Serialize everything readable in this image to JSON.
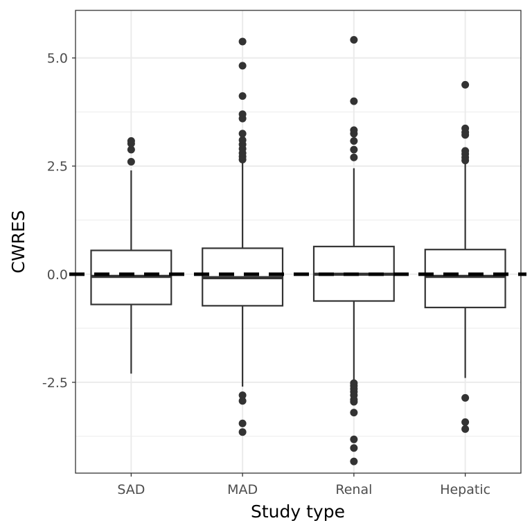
{
  "chart_data": {
    "type": "boxplot",
    "title": "",
    "xlabel": "Study type",
    "ylabel": "CWRES",
    "categories": [
      "SAD",
      "MAD",
      "Renal",
      "Hepatic"
    ],
    "ylim": [
      -4.6,
      6.1
    ],
    "y_ticks": [
      -2.5,
      0.0,
      2.5,
      5.0
    ],
    "y_tick_labels": [
      "-2.5",
      "0.0",
      "2.5",
      "5.0"
    ],
    "y_minor_ticks": [
      -3.75,
      -1.25,
      1.25,
      3.75
    ],
    "reference_line": {
      "y": 0,
      "style": "dashed"
    },
    "grid": true,
    "boxes": [
      {
        "name": "SAD",
        "q1": -0.7,
        "median": -0.05,
        "q3": 0.55,
        "whisker_low": -2.3,
        "whisker_high": 2.4,
        "outliers_high": [
          2.6,
          2.88,
          3.02,
          3.08
        ],
        "outliers_low": []
      },
      {
        "name": "MAD",
        "q1": -0.73,
        "median": -0.08,
        "q3": 0.6,
        "whisker_low": -2.6,
        "whisker_high": 2.6,
        "outliers_high": [
          2.65,
          2.72,
          2.8,
          2.9,
          3.0,
          3.1,
          3.25,
          3.6,
          3.7,
          4.12,
          4.82,
          5.38
        ],
        "outliers_low": [
          -2.8,
          -2.93,
          -3.45,
          -3.65
        ]
      },
      {
        "name": "Renal",
        "q1": -0.62,
        "median": 0.0,
        "q3": 0.64,
        "whisker_low": -2.48,
        "whisker_high": 2.45,
        "outliers_high": [
          2.7,
          2.88,
          3.08,
          3.25,
          3.33,
          4.0,
          5.42
        ],
        "outliers_low": [
          -2.52,
          -2.58,
          -2.65,
          -2.72,
          -2.8,
          -2.9,
          -2.95,
          -3.2,
          -3.82,
          -4.02,
          -4.33
        ]
      },
      {
        "name": "Hepatic",
        "q1": -0.77,
        "median": -0.05,
        "q3": 0.57,
        "whisker_low": -2.4,
        "whisker_high": 2.55,
        "outliers_high": [
          2.63,
          2.7,
          2.78,
          2.85,
          3.22,
          3.28,
          3.37,
          4.38
        ],
        "outliers_low": [
          -2.86,
          -3.42,
          -3.58
        ]
      }
    ]
  }
}
